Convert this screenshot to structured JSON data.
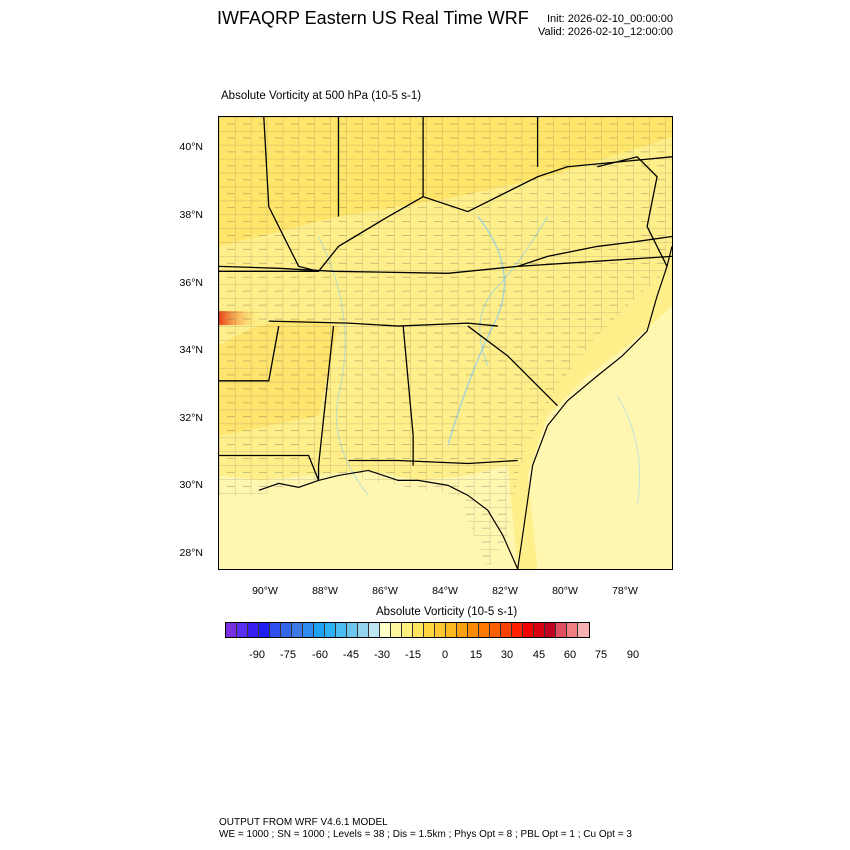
{
  "header": {
    "title": "IWFAQRP Eastern US Real Time WRF",
    "init": "Init: 2026-02-10_00:00:00",
    "valid": "Valid: 2026-02-10_12:00:00"
  },
  "plot": {
    "title": "Absolute Vorticity at 500 hPa   (10-5 s-1)",
    "lat_labels": [
      "40°N",
      "38°N",
      "36°N",
      "34°N",
      "32°N",
      "30°N",
      "28°N"
    ],
    "lon_labels": [
      "90°W",
      "88°W",
      "86°W",
      "84°W",
      "82°W",
      "80°W",
      "78°W"
    ]
  },
  "colorbar": {
    "title": "Absolute Vorticity  (10-5 s-1)",
    "ticks": [
      "-90",
      "-75",
      "-60",
      "-45",
      "-30",
      "-15",
      "0",
      "15",
      "30",
      "45",
      "60",
      "75",
      "90"
    ],
    "colors": [
      "#7a2fe0",
      "#5a2ff0",
      "#3a1ff5",
      "#1e1ef5",
      "#2f4ff0",
      "#3565e8",
      "#3d7ae6",
      "#2f8cf0",
      "#1ea2f5",
      "#2fb2f5",
      "#4dbcf0",
      "#6cc6ee",
      "#95d4ee",
      "#bde4f3",
      "#ffffc8",
      "#fff6a0",
      "#ffee80",
      "#ffe460",
      "#ffd640",
      "#ffc830",
      "#ffb820",
      "#ffa010",
      "#ff8c00",
      "#ff7800",
      "#ff6000",
      "#ff4000",
      "#ff2000",
      "#f20000",
      "#d80010",
      "#c00020",
      "#e05060",
      "#f08080",
      "#f8b0b0"
    ]
  },
  "footer": {
    "line1": "OUTPUT FROM WRF V4.6.1 MODEL",
    "line2": "WE = 1000 ; SN = 1000 ; Levels = 38 ; Dis = 1.5km ; Phys Opt = 8 ; PBL Opt = 1 ; Cu Opt = 3"
  }
}
